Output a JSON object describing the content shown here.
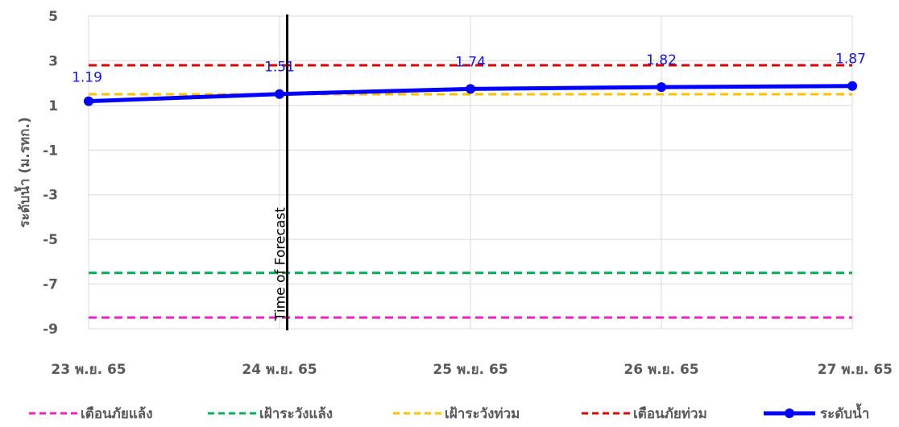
{
  "chart_data": {
    "type": "line",
    "categories": [
      "23 พ.ย. 65",
      "24 พ.ย. 65",
      "25 พ.ย. 65",
      "26 พ.ย. 65",
      "27 พ.ย. 65"
    ],
    "ylabel": "ระดับน้ำ (ม.รทก.)",
    "ylim": [
      -9,
      5
    ],
    "yticks": [
      5,
      3,
      1,
      -1,
      -3,
      -5,
      -7,
      -9
    ],
    "grid": true,
    "legend_position": "bottom",
    "forecast_marker": {
      "category_index": 1,
      "offset": 0.04,
      "label": "Time of Forecast"
    },
    "series": [
      {
        "name": "ระดับน้ำ",
        "values": [
          1.19,
          1.51,
          1.74,
          1.82,
          1.87
        ],
        "color": "#0000ff",
        "style": "solid",
        "markers": true,
        "labels": [
          "1.19",
          "1.51",
          "1.74",
          "1.82",
          "1.87"
        ]
      }
    ],
    "thresholds": [
      {
        "name": "เตือนภัยแล้ง",
        "value": -8.5,
        "color": "#ee22c4"
      },
      {
        "name": "เฝ้าระวังแล้ง",
        "value": -6.5,
        "color": "#00b050"
      },
      {
        "name": "เฝ้าระวังท่วม",
        "value": 1.5,
        "color": "#ffc000"
      },
      {
        "name": "เตือนภัยท่วม",
        "value": 2.8,
        "color": "#e00000"
      }
    ],
    "legend_order": [
      "เตือนภัยแล้ง",
      "เฝ้าระวังแล้ง",
      "เฝ้าระวังท่วม",
      "เตือนภัยท่วม",
      "ระดับน้ำ"
    ]
  }
}
